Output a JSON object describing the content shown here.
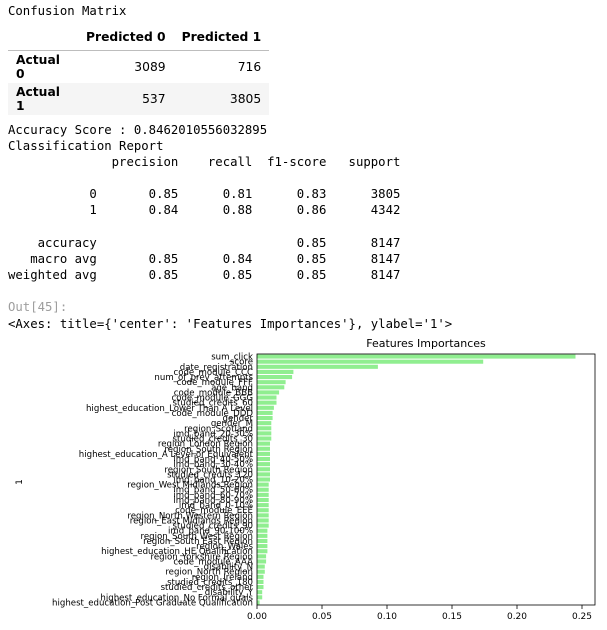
{
  "confusion": {
    "title": "Confusion Matrix",
    "columns": [
      "Predicted 0",
      "Predicted 1"
    ],
    "rows": [
      {
        "label": "Actual 0",
        "values": [
          "3089",
          "716"
        ]
      },
      {
        "label": "Actual 1",
        "values": [
          "537",
          "3805"
        ]
      }
    ]
  },
  "report": {
    "accuracy_line": "Accuracy Score : 0.8462010556032895",
    "heading": "Classification Report",
    "header_line": "              precision    recall  f1-score   support",
    "rows": [
      "           0       0.85      0.81      0.83      3805",
      "           1       0.84      0.88      0.86      4342",
      "    accuracy                           0.85      8147",
      "   macro avg       0.85      0.84      0.85      8147",
      "weighted avg       0.85      0.85      0.85      8147"
    ]
  },
  "output": {
    "prompt": "Out[45]:",
    "repr": "<Axes: title={'center': 'Features Importances'}, ylabel='1'>"
  },
  "chart_data": {
    "type": "bar",
    "orientation": "horizontal",
    "title": "Features Importances",
    "xlabel": "",
    "ylabel": "1",
    "xlim": [
      0,
      0.26
    ],
    "xticks": [
      "0.00",
      "0.05",
      "0.10",
      "0.15",
      "0.20",
      "0.25"
    ],
    "bar_color": "#90ee90",
    "categories": [
      "sum_click",
      "score",
      "date_registration",
      "code_module_CCC",
      "num_of_prev_attempts",
      "code_module_FFF",
      "age_band",
      "code_module_BBB",
      "code_module_GGG",
      "studied_credits_60",
      "highest_education_Lower Than A Level",
      "code_module_DDD",
      "gender",
      "gender_M",
      "region_Scotland",
      "imd_band_20-30%",
      "studied_credits_30",
      "region_London Region",
      "region_South Region",
      "highest_education_A Level or Equivalent",
      "imd_band_40-50%",
      "imd_band_30-40%",
      "region_South Region",
      "studied_credits_120",
      "imd_band_10-20%",
      "region_West Midlands Region",
      "imd_band_50-60%",
      "imd_band_60-70%",
      "imd_band_80-90%",
      "imd_band_0-10%",
      "code_module_EEE",
      "region_North Western Region",
      "region_East Midlands Region",
      "studied_credits_90",
      "imd_band_90-100%",
      "region_South West Region",
      "region_South East Region",
      "region_Wales",
      "highest_education_HE Qualification",
      "region_Yorkshire Region",
      "code_module_AAA",
      "disability_N",
      "region_North Region",
      "region_Ireland",
      "studied_credits_180",
      "studied_credits_other",
      "disability_Y",
      "highest_education_No Formal quals",
      "highest_education_Post Graduate Qualification"
    ],
    "values": [
      0.245,
      0.174,
      0.093,
      0.028,
      0.027,
      0.022,
      0.021,
      0.017,
      0.015,
      0.015,
      0.013,
      0.012,
      0.012,
      0.011,
      0.011,
      0.011,
      0.011,
      0.01,
      0.01,
      0.01,
      0.01,
      0.01,
      0.01,
      0.01,
      0.01,
      0.009,
      0.009,
      0.009,
      0.009,
      0.009,
      0.009,
      0.009,
      0.009,
      0.009,
      0.008,
      0.008,
      0.008,
      0.008,
      0.008,
      0.007,
      0.007,
      0.006,
      0.006,
      0.005,
      0.005,
      0.005,
      0.004,
      0.004,
      0.002
    ]
  }
}
